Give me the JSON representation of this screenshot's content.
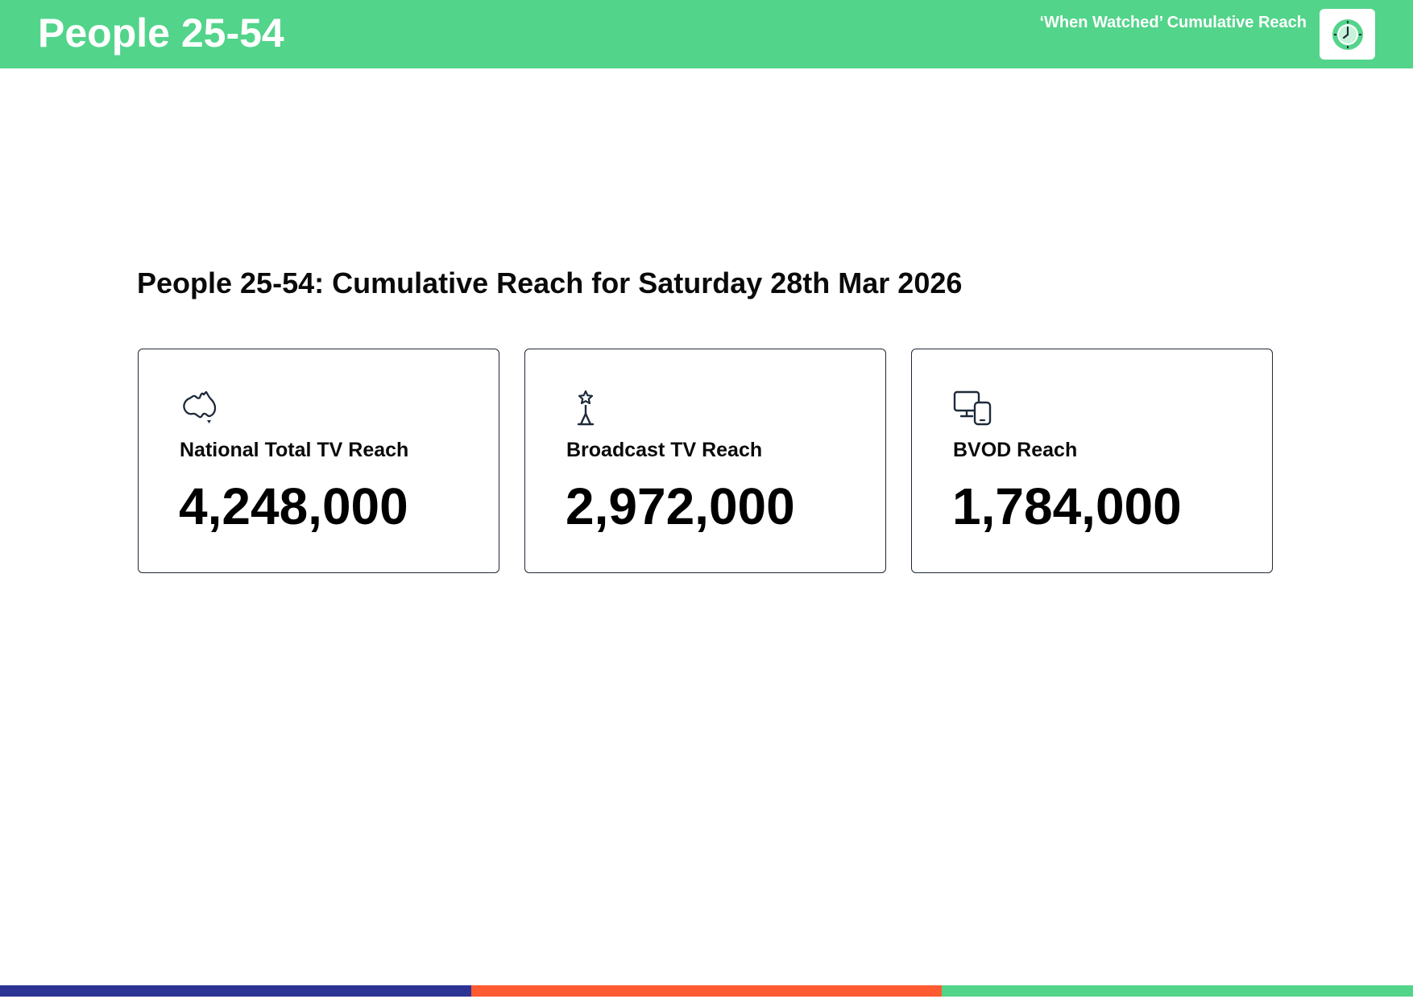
{
  "header": {
    "title": "People 25-54",
    "subtitle": "‘When Watched’ Cumulative Reach",
    "logo_icon": "clock-icon"
  },
  "main": {
    "title": "People 25-54: Cumulative Reach for Saturday 28th Mar 2026",
    "cards": [
      {
        "icon": "australia-map-icon",
        "label": "National Total TV Reach",
        "value": "4,248,000"
      },
      {
        "icon": "broadcast-tower-icon",
        "label": "Broadcast TV Reach",
        "value": "2,972,000"
      },
      {
        "icon": "devices-icon",
        "label": "BVOD Reach",
        "value": "1,784,000"
      }
    ]
  },
  "colors": {
    "brand_green": "#52d48a",
    "icon_navy": "#1e2a3b",
    "footer_navy": "#2b3494",
    "footer_orange": "#ff5a30",
    "footer_green": "#52d48a"
  }
}
